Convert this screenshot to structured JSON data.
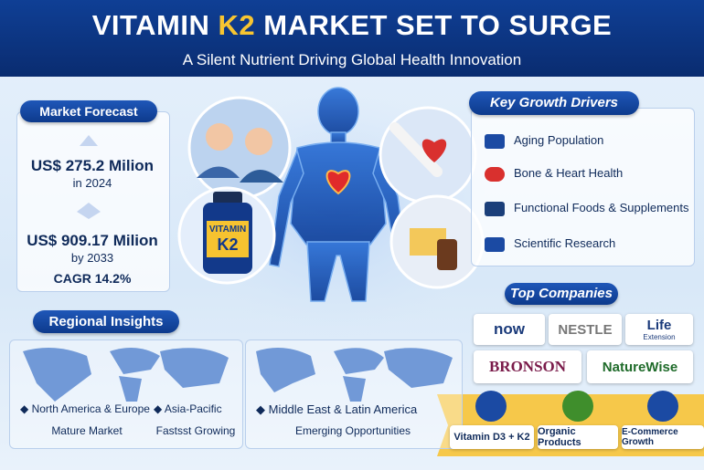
{
  "header": {
    "title_before": "VITAMIN",
    "title_highlight": "K2",
    "title_after": "MARKET SET TO SURGE",
    "subtitle": "A Silent Nutrient Driving Global Health Innovation"
  },
  "market_forecast": {
    "title": "Market Forecast",
    "value_2024": "US$ 275.2 Milion",
    "year_2024": "in 2024",
    "value_2033": "US$ 909.17 Milion",
    "year_2033": "by 2033",
    "cagr": "CAGR 14.2%"
  },
  "bottle": {
    "line1": "VITAMIN",
    "line2": "K2"
  },
  "key_growth_drivers": {
    "title": "Key Growth Drivers",
    "items": [
      "Aging Population",
      "Bone & Heart Health",
      "Functional Foods & Supplements",
      "Scientific Research"
    ]
  },
  "top_companies": {
    "title": "Top Companies",
    "logos": [
      "now",
      "NESTLE",
      "Life",
      "Extension",
      "BRONSON",
      "NatureWise"
    ]
  },
  "regional_insights": {
    "title": "Regional Insights",
    "regions": [
      {
        "name": "North America & Europe",
        "status": "Mature Market"
      },
      {
        "name": "Asia-Pacific",
        "status": "Fastsst Growing"
      },
      {
        "name": "Middle East & Latin America",
        "status": "Emerging Opportunities"
      }
    ]
  },
  "trends": [
    "Vitamin D3 + K2",
    "Organic Products",
    "E-Commerce Growth"
  ]
}
